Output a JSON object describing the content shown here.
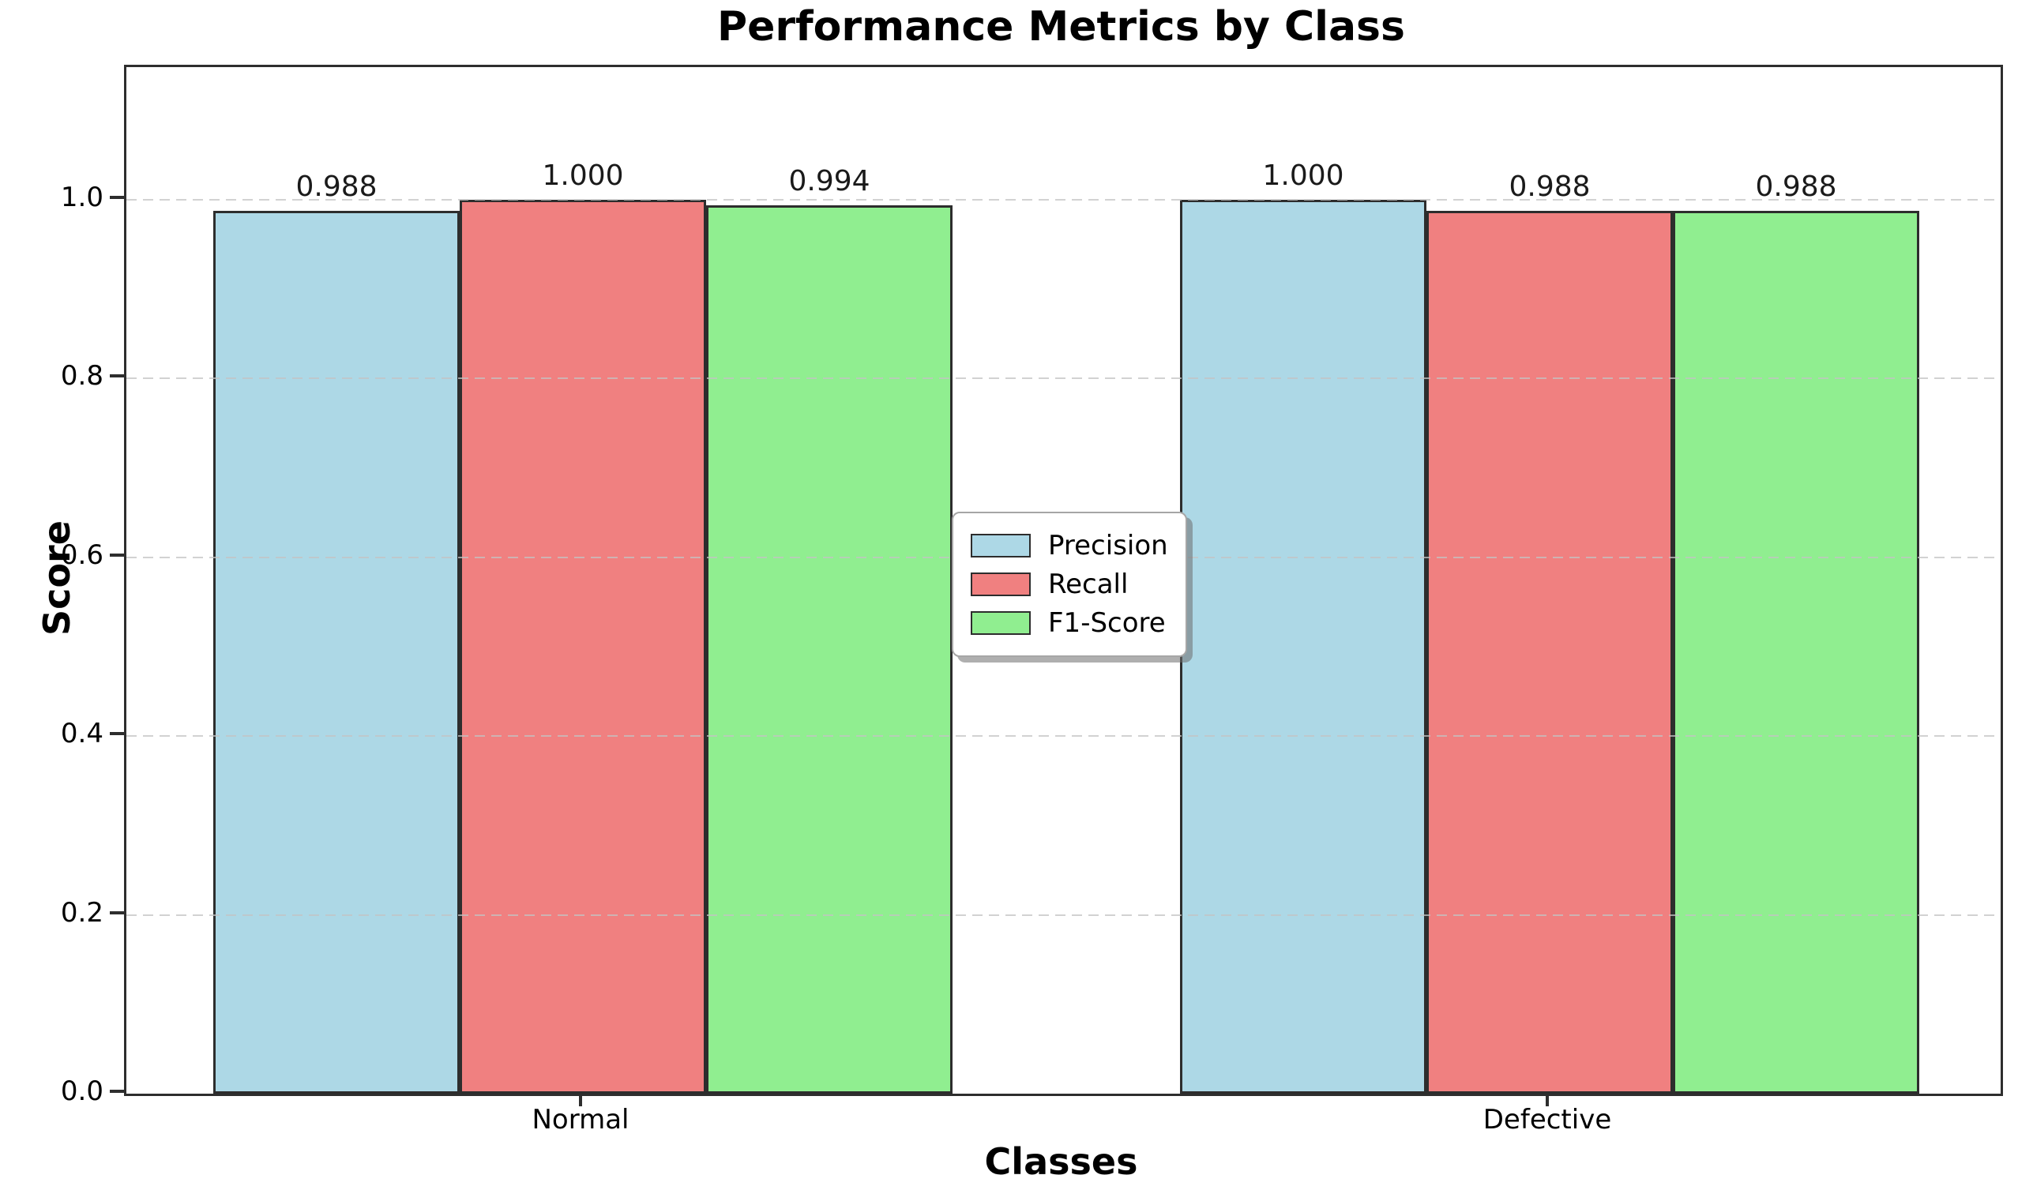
{
  "chart_data": {
    "type": "bar",
    "title": "Performance Metrics by Class",
    "xlabel": "Classes",
    "ylabel": "Score",
    "categories": [
      "Normal",
      "Defective"
    ],
    "series": [
      {
        "name": "Precision",
        "color": "#ADD8E6",
        "values": [
          0.988,
          1.0
        ]
      },
      {
        "name": "Recall",
        "color": "#F08080",
        "values": [
          1.0,
          0.988
        ]
      },
      {
        "name": "F1-Score",
        "color": "#90EE90",
        "values": [
          0.994,
          0.988
        ]
      }
    ],
    "value_labels": [
      [
        "0.988",
        "1.000",
        "0.994"
      ],
      [
        "1.000",
        "0.988",
        "0.988"
      ]
    ],
    "y_ticks": [
      "0.0",
      "0.2",
      "0.4",
      "0.6",
      "0.8",
      "1.0"
    ],
    "grid_values": [
      0.2,
      0.4,
      0.6,
      0.8,
      1.0
    ],
    "ylim": [
      0,
      1.15
    ],
    "xlim": [
      -0.4625,
      1.4625
    ],
    "grid": "horizontal-dashed",
    "legend_position": "center",
    "bar_edge_color": "#2d2d2d",
    "background_color": "#ffffff"
  }
}
